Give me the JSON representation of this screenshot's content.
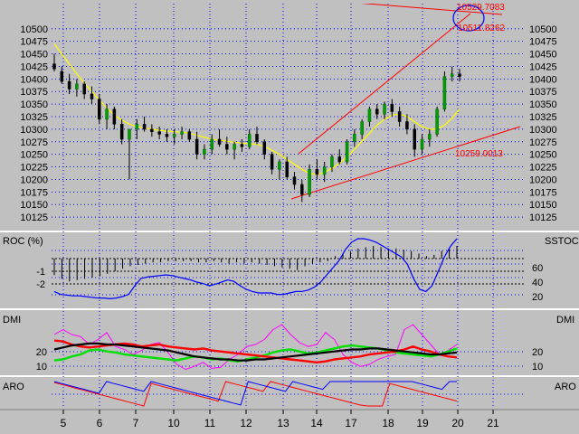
{
  "chart_data": {
    "type": "candlestick",
    "x_ticks": [
      "5",
      "6",
      "7",
      "10",
      "11",
      "12",
      "13",
      "14",
      "17",
      "18",
      "19",
      "20",
      "21"
    ],
    "price_panel": {
      "ylim": [
        10100,
        10550
      ],
      "yticks": [
        10125,
        10150,
        10175,
        10200,
        10225,
        10250,
        10275,
        10300,
        10325,
        10350,
        10375,
        10400,
        10425,
        10450,
        10475,
        10500
      ],
      "grid": true,
      "annotations": [
        {
          "text": "10529.7083",
          "color": "#ff0000"
        },
        {
          "text": "10511.8262",
          "color": "#ff0000"
        },
        {
          "text": "10259.0013",
          "color": "#ff0000"
        }
      ],
      "candles": [
        [
          10430,
          10450,
          10415,
          10420
        ],
        [
          10415,
          10425,
          10390,
          10395
        ],
        [
          10395,
          10410,
          10370,
          10380
        ],
        [
          10380,
          10400,
          10365,
          10390
        ],
        [
          10390,
          10395,
          10360,
          10370
        ],
        [
          10370,
          10385,
          10350,
          10360
        ],
        [
          10360,
          10370,
          10310,
          10320
        ],
        [
          10320,
          10350,
          10300,
          10340
        ],
        [
          10340,
          10345,
          10300,
          10310
        ],
        [
          10310,
          10320,
          10270,
          10280
        ],
        [
          10280,
          10300,
          10200,
          10300
        ],
        [
          10300,
          10320,
          10280,
          10310
        ],
        [
          10310,
          10325,
          10295,
          10300
        ],
        [
          10300,
          10310,
          10285,
          10295
        ],
        [
          10295,
          10305,
          10280,
          10290
        ],
        [
          10290,
          10300,
          10275,
          10285
        ],
        [
          10285,
          10300,
          10270,
          10290
        ],
        [
          10290,
          10305,
          10280,
          10295
        ],
        [
          10295,
          10300,
          10275,
          10280
        ],
        [
          10280,
          10295,
          10240,
          10250
        ],
        [
          10250,
          10270,
          10240,
          10260
        ],
        [
          10260,
          10290,
          10250,
          10280
        ],
        [
          10280,
          10300,
          10265,
          10270
        ],
        [
          10270,
          10285,
          10250,
          10260
        ],
        [
          10260,
          10275,
          10240,
          10270
        ],
        [
          10270,
          10280,
          10255,
          10265
        ],
        [
          10265,
          10300,
          10260,
          10290
        ],
        [
          10290,
          10305,
          10270,
          10275
        ],
        [
          10275,
          10280,
          10240,
          10250
        ],
        [
          10250,
          10255,
          10210,
          10220
        ],
        [
          10220,
          10240,
          10200,
          10235
        ],
        [
          10235,
          10245,
          10200,
          10205
        ],
        [
          10205,
          10215,
          10180,
          10190
        ],
        [
          10190,
          10200,
          10155,
          10170
        ],
        [
          10170,
          10230,
          10165,
          10220
        ],
        [
          10220,
          10240,
          10200,
          10210
        ],
        [
          10210,
          10235,
          10195,
          10225
        ],
        [
          10225,
          10250,
          10215,
          10245
        ],
        [
          10245,
          10260,
          10230,
          10235
        ],
        [
          10235,
          10280,
          10230,
          10275
        ],
        [
          10275,
          10300,
          10265,
          10290
        ],
        [
          10290,
          10320,
          10280,
          10315
        ],
        [
          10315,
          10345,
          10305,
          10340
        ],
        [
          10340,
          10350,
          10320,
          10330
        ],
        [
          10330,
          10355,
          10320,
          10350
        ],
        [
          10350,
          10360,
          10325,
          10335
        ],
        [
          10335,
          10345,
          10305,
          10315
        ],
        [
          10315,
          10330,
          10290,
          10300
        ],
        [
          10300,
          10310,
          10245,
          10260
        ],
        [
          10260,
          10290,
          10250,
          10280
        ],
        [
          10280,
          10300,
          10265,
          10290
        ],
        [
          10290,
          10345,
          10285,
          10340
        ],
        [
          10340,
          10415,
          10335,
          10405
        ],
        [
          10405,
          10425,
          10395,
          10410
        ],
        [
          10410,
          10420,
          10395,
          10405
        ]
      ],
      "ma_line": [
        10470,
        10450,
        10430,
        10410,
        10392,
        10375,
        10358,
        10342,
        10328,
        10318,
        10310,
        10305,
        10302,
        10300,
        10298,
        10296,
        10295,
        10294,
        10292,
        10288,
        10284,
        10280,
        10278,
        10276,
        10274,
        10272,
        10271,
        10270,
        10266,
        10258,
        10250,
        10240,
        10230,
        10220,
        10212,
        10210,
        10214,
        10222,
        10232,
        10245,
        10260,
        10276,
        10292,
        10308,
        10320,
        10328,
        10330,
        10325,
        10315,
        10305,
        10300,
        10300,
        10308,
        10322,
        10340
      ]
    },
    "roc_panel": {
      "label": "ROC (%)",
      "right_label": "SSTOC",
      "left_ticks": [
        "-1",
        "-2"
      ],
      "right_ticks": [
        "60",
        "40",
        "20"
      ],
      "roc_values": [
        -1.3,
        -1.6,
        -1.8,
        -1.7,
        -1.6,
        -1.5,
        -1.4,
        -1.2,
        -1.0,
        -0.8,
        -0.6,
        -0.5,
        -0.4,
        -0.3,
        -0.3,
        -0.2,
        -0.2,
        -0.2,
        -0.2,
        -0.3,
        -0.3,
        -0.2,
        -0.3,
        -0.4,
        -0.3,
        -0.4,
        -0.3,
        -0.4,
        -0.5,
        -0.6,
        -0.7,
        -0.8,
        -0.9,
        -0.6,
        -0.4,
        -0.3,
        -0.2,
        0.2,
        0.4,
        0.6,
        0.8,
        0.9,
        1.0,
        0.9,
        0.8,
        0.8,
        0.7,
        0.6,
        0.4,
        0.2,
        0.3,
        0.6,
        0.8,
        1.0
      ],
      "sstoc": [
        22,
        18,
        17,
        16,
        16,
        15,
        14,
        13,
        13,
        12,
        13,
        15,
        18,
        30,
        40,
        42,
        43,
        44,
        45,
        44,
        42,
        40,
        38,
        35,
        33,
        30,
        32,
        35,
        38,
        36,
        30,
        25,
        22,
        20,
        20,
        20,
        18,
        18,
        20,
        22,
        22,
        24,
        28,
        35,
        45,
        55,
        65,
        80,
        90,
        95,
        95,
        93,
        90,
        85,
        80,
        75,
        70,
        60,
        40,
        25,
        22,
        30,
        50,
        70,
        85,
        95
      ]
    },
    "dmi_panel": {
      "label": "DMI",
      "ticks": [
        "20",
        "10"
      ],
      "adx": [
        25,
        27,
        29,
        30,
        31,
        31,
        30,
        30,
        29,
        28,
        27,
        26,
        25,
        24,
        22,
        20,
        18,
        17,
        16,
        15,
        15,
        14,
        14,
        15,
        15,
        16,
        17,
        18,
        19,
        20,
        21,
        22,
        23,
        24,
        25,
        25,
        26,
        26,
        25,
        24,
        23,
        22,
        21,
        20,
        20,
        21,
        22
      ],
      "plus_di": [
        14,
        15,
        18,
        20,
        24,
        25,
        23,
        22,
        20,
        19,
        18,
        17,
        16,
        15,
        14,
        16,
        18,
        17,
        15,
        16,
        14,
        13,
        15,
        17,
        19,
        22,
        24,
        25,
        23,
        21,
        22,
        24,
        26,
        28,
        29,
        28,
        27,
        26,
        24,
        22,
        21,
        20,
        19,
        18,
        20,
        23,
        26
      ],
      "minus_di": [
        34,
        33,
        30,
        28,
        27,
        28,
        29,
        30,
        31,
        30,
        28,
        29,
        30,
        28,
        27,
        26,
        25,
        26,
        24,
        23,
        22,
        21,
        20,
        19,
        18,
        17,
        16,
        15,
        14,
        13,
        12,
        13,
        15,
        16,
        17,
        18,
        20,
        21,
        22,
        23,
        25,
        28,
        25,
        23,
        20,
        18,
        17
      ],
      "aux": [
        40,
        45,
        40,
        38,
        30,
        35,
        42,
        28,
        25,
        20,
        24,
        30,
        32,
        22,
        10,
        5,
        8,
        12,
        6,
        7,
        15,
        20,
        28,
        30,
        35,
        45,
        50,
        40,
        32,
        28,
        30,
        42,
        35,
        20,
        12,
        8,
        10,
        15,
        18,
        20,
        45,
        50,
        40,
        30,
        20,
        24,
        30
      ]
    },
    "aro_panel": {
      "label": "ARO",
      "aroon_up": [
        100,
        92,
        84,
        76,
        68,
        60,
        52,
        100,
        92,
        84,
        76,
        68,
        60,
        100,
        92,
        84,
        76,
        68,
        60,
        52,
        44,
        36,
        28,
        20,
        12,
        4,
        100,
        92,
        84,
        76,
        68,
        60,
        100,
        92,
        84,
        76,
        68,
        100,
        100,
        100,
        100,
        100,
        100,
        100,
        100,
        100,
        100,
        100,
        100,
        92,
        84,
        76,
        68,
        100,
        100
      ],
      "aroon_down": [
        96,
        88,
        80,
        72,
        64,
        56,
        48,
        40,
        32,
        24,
        16,
        8,
        0,
        92,
        84,
        76,
        68,
        60,
        52,
        44,
        36,
        28,
        20,
        100,
        92,
        84,
        76,
        68,
        60,
        100,
        92,
        84,
        76,
        68,
        60,
        52,
        44,
        36,
        28,
        20,
        12,
        4,
        0,
        0,
        0,
        92,
        84,
        76,
        68,
        60,
        52,
        44,
        36,
        28,
        20
      ]
    }
  }
}
